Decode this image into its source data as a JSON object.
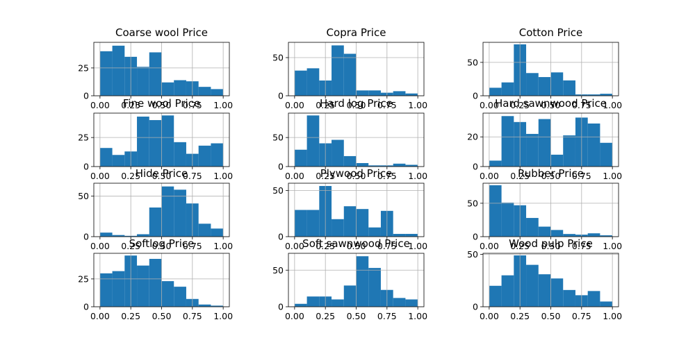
{
  "chart_data": [
    {
      "type": "histogram",
      "title": "Coarse wool Price",
      "bin_edges": [
        0,
        0.1,
        0.2,
        0.3,
        0.4,
        0.5,
        0.6,
        0.7,
        0.8,
        0.9,
        1.0
      ],
      "counts": [
        40,
        45,
        35,
        26,
        39,
        12,
        14,
        13,
        8,
        6
      ],
      "xlim": [
        -0.05,
        1.05
      ],
      "ylim": [
        0,
        48
      ],
      "xticks": [
        "0.00",
        "0.25",
        "0.50",
        "0.75",
        "1.00"
      ],
      "xtick_values": [
        0,
        0.25,
        0.5,
        0.75,
        1.0
      ],
      "yticks": [
        "0",
        "25"
      ],
      "ytick_values": [
        0,
        25
      ],
      "grid": true,
      "color": "#1f77b4"
    },
    {
      "type": "histogram",
      "title": "Copra Price",
      "bin_edges": [
        0,
        0.1,
        0.2,
        0.3,
        0.4,
        0.5,
        0.6,
        0.7,
        0.8,
        0.9,
        1.0
      ],
      "counts": [
        33,
        36,
        20,
        66,
        55,
        7,
        7,
        4,
        6,
        3
      ],
      "xlim": [
        -0.05,
        1.05
      ],
      "ylim": [
        0,
        70
      ],
      "xticks": [
        "0.00",
        "0.25",
        "0.50",
        "0.75",
        "1.00"
      ],
      "xtick_values": [
        0,
        0.25,
        0.5,
        0.75,
        1.0
      ],
      "yticks": [
        "0",
        "50"
      ],
      "ytick_values": [
        0,
        50
      ],
      "grid": true,
      "color": "#1f77b4"
    },
    {
      "type": "histogram",
      "title": "Cotton Price",
      "bin_edges": [
        0,
        0.1,
        0.2,
        0.3,
        0.4,
        0.5,
        0.6,
        0.7,
        0.8,
        0.9,
        1.0
      ],
      "counts": [
        12,
        20,
        77,
        34,
        28,
        35,
        23,
        2,
        2,
        3
      ],
      "xlim": [
        -0.05,
        1.05
      ],
      "ylim": [
        0,
        80
      ],
      "xticks": [
        "0.00",
        "0.25",
        "0.50",
        "0.75",
        "1.00"
      ],
      "xtick_values": [
        0,
        0.25,
        0.5,
        0.75,
        1.0
      ],
      "yticks": [
        "0",
        "50"
      ],
      "ytick_values": [
        0,
        50
      ],
      "grid": true,
      "color": "#1f77b4"
    },
    {
      "type": "histogram",
      "title": "Fine wool Price",
      "bin_edges": [
        0,
        0.1,
        0.2,
        0.3,
        0.4,
        0.5,
        0.6,
        0.7,
        0.8,
        0.9,
        1.0
      ],
      "counts": [
        16,
        10,
        13,
        43,
        40,
        44,
        21,
        11,
        18,
        20
      ],
      "xlim": [
        -0.05,
        1.05
      ],
      "ylim": [
        0,
        46
      ],
      "xticks": [
        "0.00",
        "0.25",
        "0.50",
        "0.75",
        "1.00"
      ],
      "xtick_values": [
        0,
        0.25,
        0.5,
        0.75,
        1.0
      ],
      "yticks": [
        "0",
        "25"
      ],
      "ytick_values": [
        0,
        25
      ],
      "grid": true,
      "color": "#1f77b4"
    },
    {
      "type": "histogram",
      "title": "Hard log Price",
      "bin_edges": [
        0,
        0.1,
        0.2,
        0.3,
        0.4,
        0.5,
        0.6,
        0.7,
        0.8,
        0.9,
        1.0
      ],
      "counts": [
        29,
        88,
        40,
        46,
        18,
        6,
        2,
        2,
        5,
        3
      ],
      "xlim": [
        -0.05,
        1.05
      ],
      "ylim": [
        0,
        92
      ],
      "xticks": [
        "0.00",
        "0.25",
        "0.50",
        "0.75",
        "1.00"
      ],
      "xtick_values": [
        0,
        0.25,
        0.5,
        0.75,
        1.0
      ],
      "yticks": [
        "0",
        "50"
      ],
      "ytick_values": [
        0,
        50
      ],
      "grid": true,
      "color": "#1f77b4"
    },
    {
      "type": "histogram",
      "title": "Hard sawnwood Price",
      "bin_edges": [
        0,
        0.1,
        0.2,
        0.3,
        0.4,
        0.5,
        0.6,
        0.7,
        0.8,
        0.9,
        1.0
      ],
      "counts": [
        4,
        34,
        30,
        22,
        32,
        8,
        21,
        33,
        29,
        16
      ],
      "xlim": [
        -0.05,
        1.05
      ],
      "ylim": [
        0,
        36
      ],
      "xticks": [
        "0.00",
        "0.25",
        "0.50",
        "0.75",
        "1.00"
      ],
      "xtick_values": [
        0,
        0.25,
        0.5,
        0.75,
        1.0
      ],
      "yticks": [
        "0",
        "20"
      ],
      "ytick_values": [
        0,
        20
      ],
      "grid": true,
      "color": "#1f77b4"
    },
    {
      "type": "histogram",
      "title": "Hide Price",
      "bin_edges": [
        0,
        0.1,
        0.2,
        0.3,
        0.4,
        0.5,
        0.6,
        0.7,
        0.8,
        0.9,
        1.0
      ],
      "counts": [
        5,
        2,
        1,
        3,
        36,
        62,
        58,
        41,
        16,
        10
      ],
      "xlim": [
        -0.05,
        1.05
      ],
      "ylim": [
        0,
        66
      ],
      "xticks": [
        "0.00",
        "0.25",
        "0.50",
        "0.75",
        "1.00"
      ],
      "xtick_values": [
        0,
        0.25,
        0.5,
        0.75,
        1.0
      ],
      "yticks": [
        "0",
        "50"
      ],
      "ytick_values": [
        0,
        50
      ],
      "grid": true,
      "color": "#1f77b4"
    },
    {
      "type": "histogram",
      "title": "Plywood Price",
      "bin_edges": [
        0,
        0.1,
        0.2,
        0.3,
        0.4,
        0.5,
        0.6,
        0.7,
        0.8,
        0.9,
        1.0
      ],
      "counts": [
        29,
        29,
        55,
        19,
        33,
        30,
        10,
        28,
        3,
        3
      ],
      "xlim": [
        -0.05,
        1.05
      ],
      "ylim": [
        0,
        58
      ],
      "xticks": [
        "0.00",
        "0.25",
        "0.50",
        "0.75",
        "1.00"
      ],
      "xtick_values": [
        0,
        0.25,
        0.5,
        0.75,
        1.0
      ],
      "yticks": [
        "0",
        "50"
      ],
      "ytick_values": [
        0,
        50
      ],
      "grid": true,
      "color": "#1f77b4"
    },
    {
      "type": "histogram",
      "title": "Rubber Price",
      "bin_edges": [
        0,
        0.1,
        0.2,
        0.3,
        0.4,
        0.5,
        0.6,
        0.7,
        0.8,
        0.9,
        1.0
      ],
      "counts": [
        77,
        51,
        47,
        28,
        15,
        10,
        4,
        3,
        5,
        2
      ],
      "xlim": [
        -0.05,
        1.05
      ],
      "ylim": [
        0,
        80
      ],
      "xticks": [
        "0.00",
        "0.25",
        "0.50",
        "0.75",
        "1.00"
      ],
      "xtick_values": [
        0,
        0.25,
        0.5,
        0.75,
        1.0
      ],
      "yticks": [
        "0",
        "50"
      ],
      "ytick_values": [
        0,
        50
      ],
      "grid": true,
      "color": "#1f77b4"
    },
    {
      "type": "histogram",
      "title": "Softlog Price",
      "bin_edges": [
        0,
        0.1,
        0.2,
        0.3,
        0.4,
        0.5,
        0.6,
        0.7,
        0.8,
        0.9,
        1.0
      ],
      "counts": [
        30,
        32,
        46,
        37,
        43,
        23,
        18,
        7,
        2,
        1
      ],
      "xlim": [
        -0.05,
        1.05
      ],
      "ylim": [
        0,
        48
      ],
      "xticks": [
        "0.00",
        "0.25",
        "0.50",
        "0.75",
        "1.00"
      ],
      "xtick_values": [
        0,
        0.25,
        0.5,
        0.75,
        1.0
      ],
      "yticks": [
        "0",
        "25"
      ],
      "ytick_values": [
        0,
        25
      ],
      "grid": true,
      "color": "#1f77b4"
    },
    {
      "type": "histogram",
      "title": "Soft sawnwood Price",
      "bin_edges": [
        0,
        0.1,
        0.2,
        0.3,
        0.4,
        0.5,
        0.6,
        0.7,
        0.8,
        0.9,
        1.0
      ],
      "counts": [
        4,
        14,
        14,
        10,
        29,
        69,
        53,
        23,
        12,
        10
      ],
      "xlim": [
        -0.05,
        1.05
      ],
      "ylim": [
        0,
        73
      ],
      "xticks": [
        "0.00",
        "0.25",
        "0.50",
        "0.75",
        "1.00"
      ],
      "xtick_values": [
        0,
        0.25,
        0.5,
        0.75,
        1.0
      ],
      "yticks": [
        "0",
        "50"
      ],
      "ytick_values": [
        0,
        50
      ],
      "grid": true,
      "color": "#1f77b4"
    },
    {
      "type": "histogram",
      "title": "Wood pulp Price",
      "bin_edges": [
        0,
        0.1,
        0.2,
        0.3,
        0.4,
        0.5,
        0.6,
        0.7,
        0.8,
        0.9,
        1.0
      ],
      "counts": [
        20,
        30,
        49,
        40,
        31,
        27,
        16,
        11,
        15,
        5
      ],
      "xlim": [
        -0.05,
        1.05
      ],
      "ylim": [
        0,
        51
      ],
      "xticks": [
        "0.00",
        "0.25",
        "0.50",
        "0.75",
        "1.00"
      ],
      "xtick_values": [
        0,
        0.25,
        0.5,
        0.75,
        1.0
      ],
      "yticks": [
        "0",
        "50"
      ],
      "ytick_values": [
        0,
        50
      ],
      "grid": true,
      "color": "#1f77b4"
    }
  ]
}
